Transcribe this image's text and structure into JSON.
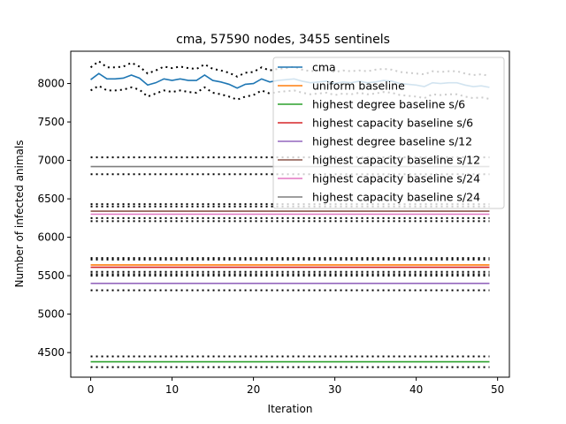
{
  "chart_data": {
    "type": "line",
    "title": "cma, 57590 nodes, 3455 sentinels",
    "xlabel": "Iteration",
    "ylabel": "Number of infected animals",
    "xlim": [
      -2.45,
      51.45
    ],
    "ylim": [
      4180,
      8420
    ],
    "xticks": [
      0,
      10,
      20,
      30,
      40,
      50
    ],
    "yticks": [
      4500,
      5000,
      5500,
      6000,
      6500,
      7000,
      7500,
      8000
    ],
    "legend_position": "top-right",
    "band_style": "dotted black lines (mean ± spread)",
    "x": [
      0,
      1,
      2,
      3,
      4,
      5,
      6,
      7,
      8,
      9,
      10,
      11,
      12,
      13,
      14,
      15,
      16,
      17,
      18,
      19,
      20,
      21,
      22,
      23,
      24,
      25,
      26,
      27,
      28,
      29,
      30,
      31,
      32,
      33,
      34,
      35,
      36,
      37,
      38,
      39,
      40,
      41,
      42,
      43,
      44,
      45,
      46,
      47,
      48,
      49
    ],
    "series": [
      {
        "name": "cma",
        "color": "#1f77b4",
        "values": [
          8050,
          8130,
          8060,
          8060,
          8070,
          8110,
          8070,
          7980,
          8010,
          8060,
          8040,
          8060,
          8040,
          8040,
          8110,
          8040,
          8020,
          7990,
          7940,
          7990,
          8000,
          8060,
          8020,
          8040,
          8050,
          8060,
          8030,
          8010,
          8020,
          8030,
          8000,
          8020,
          8010,
          8030,
          8010,
          8020,
          8040,
          8030,
          8000,
          7990,
          7980,
          7960,
          8010,
          8000,
          8010,
          8010,
          7980,
          7960,
          7970,
          7950
        ],
        "upper": [
          8210,
          8290,
          8210,
          8210,
          8220,
          8270,
          8220,
          8130,
          8170,
          8220,
          8200,
          8220,
          8200,
          8190,
          8250,
          8190,
          8170,
          8140,
          8090,
          8140,
          8150,
          8210,
          8170,
          8190,
          8200,
          8220,
          8180,
          8160,
          8170,
          8180,
          8150,
          8170,
          8160,
          8170,
          8160,
          8180,
          8190,
          8180,
          8150,
          8140,
          8130,
          8120,
          8160,
          8150,
          8160,
          8160,
          8130,
          8110,
          8120,
          8100
        ],
        "lower": [
          7910,
          7970,
          7910,
          7910,
          7920,
          7950,
          7920,
          7830,
          7870,
          7910,
          7890,
          7910,
          7890,
          7880,
          7950,
          7880,
          7860,
          7830,
          7790,
          7830,
          7850,
          7910,
          7870,
          7890,
          7900,
          7910,
          7880,
          7860,
          7870,
          7880,
          7850,
          7870,
          7860,
          7880,
          7860,
          7870,
          7890,
          7880,
          7850,
          7840,
          7830,
          7810,
          7860,
          7850,
          7860,
          7860,
          7830,
          7810,
          7820,
          7800
        ]
      },
      {
        "name": "uniform baseline",
        "color": "#ff7f0e",
        "value": 5640,
        "upper": 5730,
        "lower": 5550
      },
      {
        "name": "highest degree baseline s/6",
        "color": "#2ca02c",
        "value": 4380,
        "upper": 4450,
        "lower": 4310
      },
      {
        "name": "highest capacity baseline s/6",
        "color": "#d62728",
        "value": 5610,
        "upper": 5710,
        "lower": 5520
      },
      {
        "name": "highest degree baseline s/12",
        "color": "#9467bd",
        "value": 5400,
        "upper": 5500,
        "lower": 5310
      },
      {
        "name": "highest capacity baseline s/12",
        "color": "#8c564b",
        "value": 6340,
        "upper": 6430,
        "lower": 6250
      },
      {
        "name": "highest capacity baseline s/24",
        "color": "#e377c2",
        "value": 6300,
        "upper": 6400,
        "lower": 6210
      },
      {
        "name": "highest capacity baseline s/24",
        "color": "#7f7f7f",
        "value": 6920,
        "upper": 7040,
        "lower": 6820
      }
    ]
  }
}
